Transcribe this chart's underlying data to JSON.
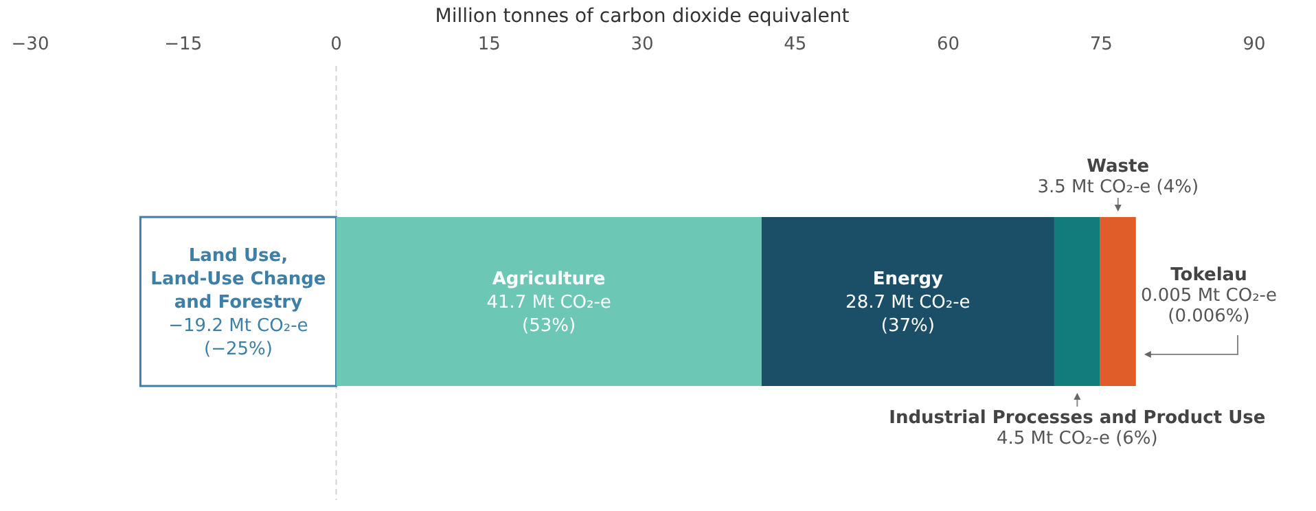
{
  "chart_data": {
    "type": "bar",
    "orientation": "horizontal",
    "stacked": true,
    "xlabel": "Million tonnes of carbon dioxide equivalent",
    "categories": [
      null
    ],
    "xlim": [
      -30,
      90
    ],
    "xticks": [
      {
        "value": -30,
        "label": "−30"
      },
      {
        "value": -15,
        "label": "−15"
      },
      0,
      15,
      30,
      45,
      60,
      75,
      90
    ],
    "ref_lines": [
      {
        "axis": "x",
        "value": 0,
        "color": "#d4d4d4",
        "line_style": "dashed"
      }
    ],
    "series": [
      {
        "name": "Land Use, Land-Use Change and Forestry",
        "color": "#ffffff",
        "values": [
          -19.2
        ],
        "value_labels": [
          "−19.2 Mt CO₂-e (−25%)"
        ]
      },
      {
        "name": "Agriculture",
        "color": "#6cc7b4",
        "values": [
          41.7
        ],
        "value_labels": [
          "41.7 Mt CO₂-e (53%)"
        ]
      },
      {
        "name": "Energy",
        "color": "#1b4f68",
        "values": [
          28.7
        ],
        "value_labels": [
          "28.7 Mt CO₂-e (37%)"
        ]
      },
      {
        "name": "Industrial Processes and Product Use",
        "color": "#127b7b",
        "values": [
          4.5
        ],
        "value_labels": [
          "4.5 Mt CO₂-e (6%)"
        ]
      },
      {
        "name": "Waste",
        "color": "#e05c28",
        "values": [
          3.5
        ],
        "value_labels": [
          "3.5 Mt CO₂-e (4%)"
        ]
      },
      {
        "name": "Tokelau",
        "color": "#e05c28",
        "values": [
          0.005
        ],
        "value_labels": [
          "0.005 Mt CO₂-e (0.006%)"
        ]
      }
    ]
  }
}
